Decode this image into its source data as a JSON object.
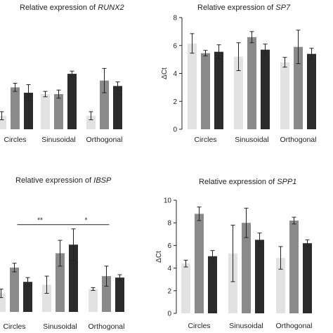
{
  "chart_data": [
    {
      "id": "runx2",
      "type": "bar",
      "title_prefix": "Relative expression of ",
      "title_gene": "RUNX2",
      "ylabel": "",
      "categories": [
        "Circles",
        "Sinusoidal",
        "Orthogonal"
      ],
      "series": [
        {
          "color": "#e2e2e2",
          "values": [
            1.0,
            2.6,
            1.0
          ],
          "errors": [
            0.3,
            0.2,
            0.3
          ]
        },
        {
          "color": "#8a8a8a",
          "values": [
            3.1,
            2.6,
            3.6
          ],
          "errors": [
            0.3,
            0.3,
            0.9
          ]
        },
        {
          "color": "#2b2b2b",
          "values": [
            2.7,
            4.1,
            3.2
          ],
          "errors": [
            0.6,
            0.2,
            0.3
          ]
        }
      ],
      "ylim": [
        0,
        8
      ],
      "annotations": []
    },
    {
      "id": "sp7",
      "type": "bar",
      "title_prefix": "Relative expression of ",
      "title_gene": "SP7",
      "ylabel": "ΔCt",
      "categories": [
        "Circles",
        "Sinusoidal",
        "Orthogonal"
      ],
      "series": [
        {
          "color": "#e2e2e2",
          "values": [
            6.15,
            5.2,
            4.8
          ],
          "errors": [
            0.7,
            1.0,
            0.35
          ]
        },
        {
          "color": "#8a8a8a",
          "values": [
            5.45,
            6.6,
            5.9
          ],
          "errors": [
            0.2,
            0.4,
            1.2
          ]
        },
        {
          "color": "#2b2b2b",
          "values": [
            5.55,
            5.7,
            5.4
          ],
          "errors": [
            0.5,
            0.4,
            0.4
          ]
        }
      ],
      "ylim": [
        0,
        8
      ],
      "yticks": [
        0,
        2,
        4,
        6,
        8
      ],
      "annotations": []
    },
    {
      "id": "ibsp",
      "type": "bar",
      "title_prefix": "Relative expression of ",
      "title_gene": "IBSP",
      "ylabel": "",
      "categories": [
        "Circles",
        "Sinusoidal",
        "Orthogonal"
      ],
      "series": [
        {
          "color": "#e2e2e2",
          "values": [
            1.3,
            1.9,
            1.6
          ],
          "errors": [
            0.3,
            0.6,
            0.1
          ]
        },
        {
          "color": "#8a8a8a",
          "values": [
            3.1,
            4.1,
            2.5
          ],
          "errors": [
            0.3,
            0.9,
            0.7
          ]
        },
        {
          "color": "#2b2b2b",
          "values": [
            2.1,
            4.7,
            2.4
          ],
          "errors": [
            0.3,
            1.1,
            0.2
          ]
        }
      ],
      "ylim": [
        0,
        8
      ],
      "annotations": [
        {
          "text": "**",
          "from": "Circles",
          "to": "Sinusoidal",
          "y": 6.1
        },
        {
          "text": "*",
          "from": "Sinusoidal",
          "to": "Orthogonal",
          "y": 6.1
        }
      ]
    },
    {
      "id": "spp1",
      "type": "bar",
      "title_prefix": "Relative expression of ",
      "title_gene": "SPP1",
      "ylabel": "ΔCt",
      "categories": [
        "Circles",
        "Sinusoidal",
        "Orthogonal"
      ],
      "series": [
        {
          "color": "#e2e2e2",
          "values": [
            4.4,
            5.3,
            4.9
          ],
          "errors": [
            0.3,
            2.5,
            1.0
          ]
        },
        {
          "color": "#8a8a8a",
          "values": [
            8.8,
            8.0,
            8.2
          ],
          "errors": [
            0.6,
            1.3,
            0.3
          ]
        },
        {
          "color": "#2b2b2b",
          "values": [
            5.05,
            6.5,
            6.2
          ],
          "errors": [
            0.5,
            0.6,
            0.3
          ]
        }
      ],
      "ylim": [
        0,
        10
      ],
      "yticks": [
        0,
        2,
        4,
        6,
        8,
        10
      ],
      "annotations": []
    }
  ]
}
